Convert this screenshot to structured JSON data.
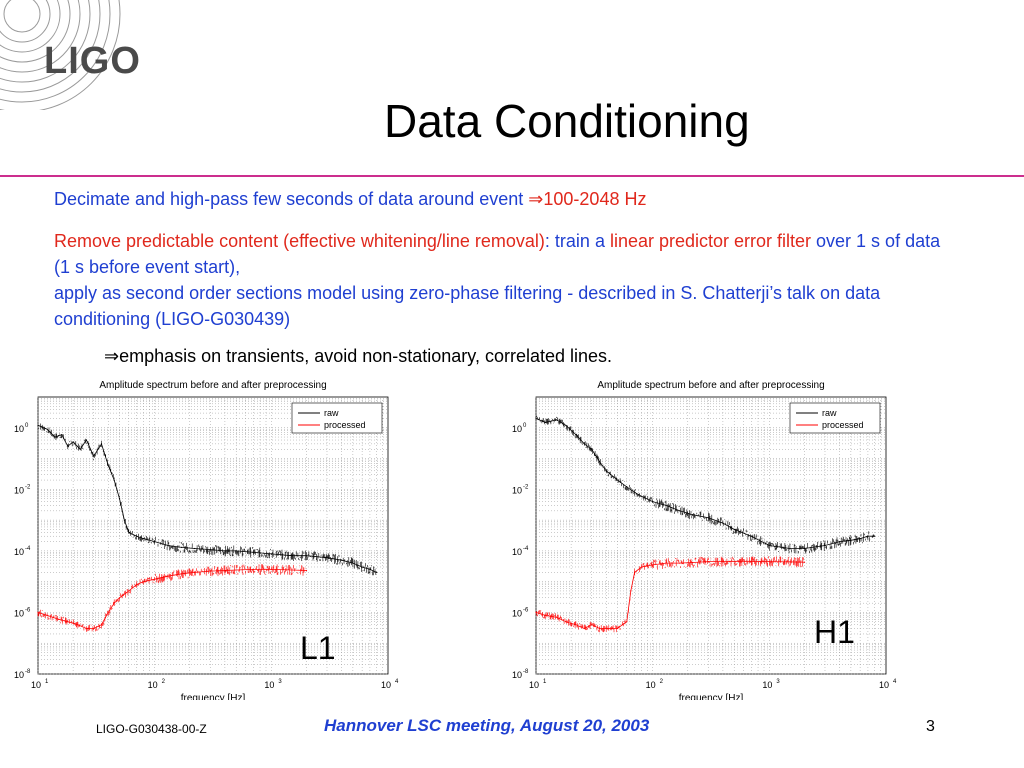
{
  "logo": {
    "text": "LIGO"
  },
  "title": "Data Conditioning",
  "bullets": {
    "b1_text": "Decimate and high-pass few seconds of data around event ",
    "b1_arrow": "⇒",
    "b1_range": "100-2048 Hz",
    "b2_part1": "Remove predictable content (effective whitening/line removal)",
    "b2_part2": ": train a ",
    "b2_part3": "linear predictor error filter",
    "b2_part4": " over 1 s of data (1 s before event start),",
    "b2_line2": "apply as second order sections model using zero-phase filtering - described in S. Chatterji’s talk on data conditioning (LIGO-G030439)",
    "b3_arrow": "⇒",
    "b3_text": "emphasis on transients,  avoid non-stationary, correlated lines."
  },
  "chart_data": [
    {
      "type": "line",
      "title": "Amplitude spectrum before and after preprocessing",
      "xlabel": "frequency [Hz]",
      "ylabel": "",
      "x_scale": "log",
      "y_scale": "log",
      "xlim": [
        10,
        10000
      ],
      "ylim": [
        1e-08,
        10
      ],
      "x_ticks": [
        {
          "base": "10",
          "exp": "1"
        },
        {
          "base": "10",
          "exp": "2"
        },
        {
          "base": "10",
          "exp": "3"
        },
        {
          "base": "10",
          "exp": "4"
        }
      ],
      "y_ticks": [
        {
          "base": "10",
          "exp": "0"
        },
        {
          "base": "10",
          "exp": "-2"
        },
        {
          "base": "10",
          "exp": "-4"
        },
        {
          "base": "10",
          "exp": "-6"
        },
        {
          "base": "10",
          "exp": "-8"
        }
      ],
      "grid": true,
      "legend_position": "top-right",
      "label": "L1",
      "series": [
        {
          "name": "raw",
          "color": "#000000",
          "x": [
            10,
            12,
            14,
            16,
            18,
            20,
            23,
            26,
            30,
            35,
            40,
            45,
            50,
            55,
            60,
            70,
            80,
            100,
            130,
            170,
            220,
            300,
            400,
            500,
            700,
            1000,
            1500,
            2000,
            3000,
            4000,
            5000,
            6000,
            7000,
            8000
          ],
          "y": [
            1.2,
            0.9,
            0.5,
            0.6,
            0.25,
            0.35,
            0.2,
            0.4,
            0.12,
            0.3,
            0.06,
            0.02,
            0.005,
            0.001,
            0.0004,
            0.0003,
            0.00025,
            0.0002,
            0.00015,
            0.00013,
            0.00012,
            0.00011,
            0.0001,
            0.0001,
            9e-05,
            8e-05,
            7e-05,
            7e-05,
            6e-05,
            5e-05,
            4e-05,
            3e-05,
            2.5e-05,
            2e-05
          ]
        },
        {
          "name": "processed",
          "color": "#ff0000",
          "x": [
            10,
            12,
            15,
            18,
            22,
            26,
            30,
            35,
            40,
            45,
            50,
            60,
            70,
            80,
            100,
            130,
            170,
            220,
            300,
            400,
            500,
            700,
            1000,
            1500,
            2000
          ],
          "y": [
            1e-06,
            8e-07,
            6e-07,
            5e-07,
            4e-07,
            3e-07,
            3e-07,
            4e-07,
            1e-06,
            2e-06,
            3e-06,
            5e-06,
            8e-06,
            1e-05,
            1.2e-05,
            1.5e-05,
            1.8e-05,
            2e-05,
            2.2e-05,
            2.3e-05,
            2.4e-05,
            2.5e-05,
            2.5e-05,
            2.4e-05,
            2.3e-05
          ]
        }
      ]
    },
    {
      "type": "line",
      "title": "Amplitude spectrum before and after preprocessing",
      "xlabel": "frequency [Hz]",
      "ylabel": "",
      "x_scale": "log",
      "y_scale": "log",
      "xlim": [
        10,
        10000
      ],
      "ylim": [
        1e-08,
        10
      ],
      "x_ticks": [
        {
          "base": "10",
          "exp": "1"
        },
        {
          "base": "10",
          "exp": "2"
        },
        {
          "base": "10",
          "exp": "3"
        },
        {
          "base": "10",
          "exp": "4"
        }
      ],
      "y_ticks": [
        {
          "base": "10",
          "exp": "0"
        },
        {
          "base": "10",
          "exp": "-2"
        },
        {
          "base": "10",
          "exp": "-4"
        },
        {
          "base": "10",
          "exp": "-6"
        },
        {
          "base": "10",
          "exp": "-8"
        }
      ],
      "grid": true,
      "legend_position": "top-right",
      "label": "H1",
      "series": [
        {
          "name": "raw",
          "color": "#000000",
          "x": [
            10,
            12,
            15,
            18,
            22,
            26,
            30,
            35,
            40,
            50,
            60,
            70,
            80,
            100,
            130,
            170,
            220,
            300,
            400,
            500,
            700,
            1000,
            1500,
            2000,
            3000,
            4000,
            5000,
            6000,
            7000,
            8000
          ],
          "y": [
            2,
            1.5,
            1.8,
            1.2,
            0.6,
            0.3,
            0.2,
            0.08,
            0.04,
            0.02,
            0.012,
            0.008,
            0.006,
            0.004,
            0.003,
            0.002,
            0.0015,
            0.0012,
            0.0008,
            0.0005,
            0.0003,
            0.00015,
            0.00012,
            0.00012,
            0.00015,
            0.0002,
            0.00022,
            0.00025,
            0.0003,
            0.0003
          ]
        },
        {
          "name": "processed",
          "color": "#ff0000",
          "x": [
            10,
            12,
            15,
            18,
            22,
            26,
            30,
            35,
            40,
            45,
            50,
            55,
            60,
            65,
            70,
            80,
            100,
            130,
            170,
            220,
            300,
            400,
            500,
            700,
            1000,
            1500,
            2000
          ],
          "y": [
            1e-06,
            8e-07,
            7e-07,
            5e-07,
            4e-07,
            3e-07,
            4e-07,
            3e-07,
            3e-07,
            3e-07,
            3e-07,
            4e-07,
            5e-07,
            5e-06,
            2e-05,
            3e-05,
            3.5e-05,
            4e-05,
            4e-05,
            4.2e-05,
            4.5e-05,
            4.5e-05,
            4.6e-05,
            4.6e-05,
            4.5e-05,
            4.4e-05,
            4.3e-05
          ]
        }
      ]
    }
  ],
  "footer": {
    "doc_id": "LIGO-G030438-00-Z",
    "meeting": "Hannover LSC meeting, August 20, 2003",
    "page": "3"
  }
}
